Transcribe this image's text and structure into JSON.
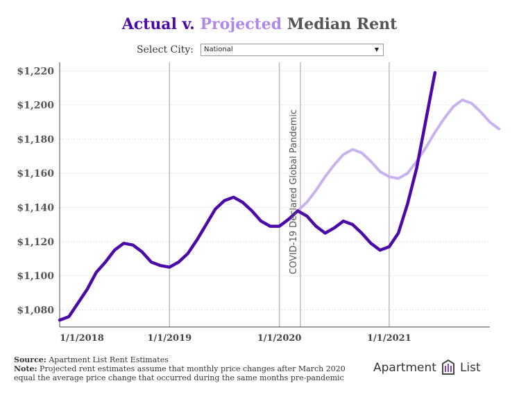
{
  "title": {
    "actual": "Actual",
    "sep": " v. ",
    "projected": "Projected",
    "rest": " Median Rent"
  },
  "selector": {
    "label": "Select City:",
    "value": "National"
  },
  "colors": {
    "actual": "#4b0aa8",
    "projected": "#c9b3ee",
    "vline": "#bbbbbb",
    "grid": "#e3e3e3"
  },
  "chart_data": {
    "type": "line",
    "title": "Actual v. Projected Median Rent",
    "xlabel": "",
    "ylabel": "",
    "x_range": [
      "2018-01",
      "2021-12"
    ],
    "ylim": [
      1070,
      1225
    ],
    "y_ticks": [
      1080,
      1100,
      1120,
      1140,
      1160,
      1180,
      1200,
      1220
    ],
    "y_tick_labels": [
      "$1,080",
      "$1,100",
      "$1,120",
      "$1,140",
      "$1,160",
      "$1,180",
      "$1,200",
      "$1,220"
    ],
    "x_ticks": [
      0,
      12,
      24,
      36
    ],
    "x_tick_labels": [
      "1/1/2018",
      "1/1/2019",
      "1/1/2020",
      "1/1/2021"
    ],
    "series": [
      {
        "name": "Actual",
        "start_month": 0,
        "values": [
          1074,
          1076,
          1084,
          1092,
          1102,
          1108,
          1115,
          1119,
          1118,
          1114,
          1108,
          1106,
          1105,
          1108,
          1113,
          1121,
          1130,
          1139,
          1144,
          1146,
          1143,
          1138,
          1132,
          1129,
          1129,
          1133,
          1138,
          1135,
          1129,
          1125,
          1128,
          1132,
          1130,
          1125,
          1119,
          1115,
          1117,
          1125,
          1142,
          1163,
          1191,
          1219
        ]
      },
      {
        "name": "Projected",
        "start_month": 26,
        "values": [
          1138,
          1143,
          1150,
          1158,
          1165,
          1171,
          1174,
          1172,
          1167,
          1161,
          1158,
          1157,
          1160,
          1167,
          1175,
          1184,
          1192,
          1199,
          1203,
          1201,
          1196,
          1190,
          1186
        ]
      }
    ],
    "vertical_lines": [
      12,
      24,
      26.3,
      36
    ],
    "annotations": [
      {
        "text": "COVID-19 Declared Global Pandemic",
        "x_month": 26.3
      }
    ]
  },
  "footer": {
    "source_label": "Source:",
    "source_text": " Apartment List Rent Estimates",
    "note_label": "Note:",
    "note_line1": " Projected rent estimates assume that monthly price changes after March 2020",
    "note_line2": "equal the average price change that occurred during the same months pre-pandemic"
  },
  "logo": {
    "left": "Apartment",
    "right": "List"
  }
}
